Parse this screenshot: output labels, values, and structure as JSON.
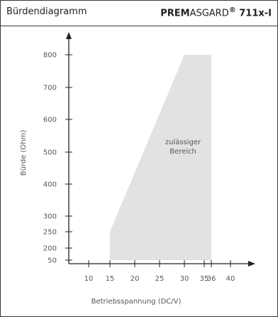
{
  "header": {
    "left_title": "Bürdendiagramm",
    "right_bold_1": "PREM",
    "right_regular": "ASGARD",
    "right_sup": "®",
    "right_bold_2": " 711x-I"
  },
  "chart_data": {
    "type": "area",
    "title": "Bürdendiagramm",
    "xlabel": "Betriebsspannung (DC/V)",
    "ylabel": "Bürde (Ohm)",
    "x_ticks": [
      10,
      15,
      20,
      25,
      30,
      35,
      36,
      40
    ],
    "y_ticks": [
      50,
      200,
      250,
      300,
      400,
      500,
      600,
      700,
      800
    ],
    "xlim": [
      5,
      45
    ],
    "ylim": [
      30,
      850
    ],
    "series": [
      {
        "polygon": [
          {
            "x": 15,
            "y": 50
          },
          {
            "x": 15,
            "y": 250
          },
          {
            "x": 30,
            "y": 800
          },
          {
            "x": 36,
            "y": 800
          },
          {
            "x": 36,
            "y": 50
          }
        ]
      }
    ],
    "area_label_lines": [
      "zulässiger",
      "Bereich"
    ],
    "area_color": "#e2e2e2",
    "axis_color": "#222222",
    "grid": false
  }
}
